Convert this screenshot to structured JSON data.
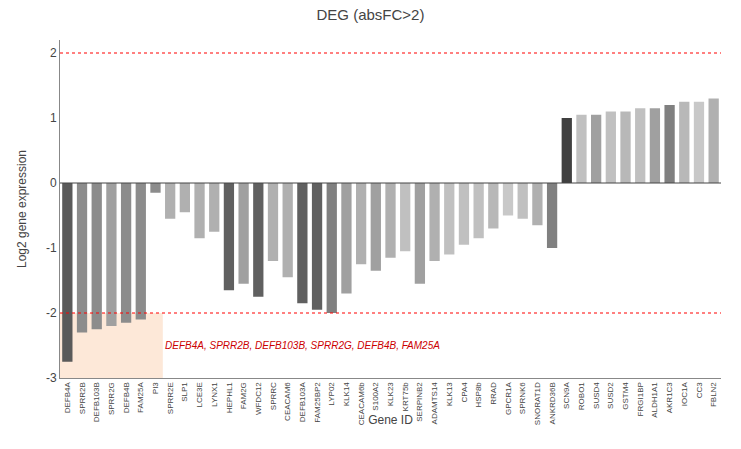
{
  "chart_data": {
    "type": "bar",
    "title": "DEG (absFC>2)",
    "xlabel": "Gene ID",
    "ylabel": "Log2 gene expression",
    "categories": [
      "DEFB4A",
      "SPRR2B",
      "DEFB103B",
      "SPRR2G",
      "DEFB4B",
      "FAM25A",
      "PI3",
      "SPRR2E",
      "SLP1",
      "LCE3E",
      "LYNX1",
      "HEPHL1",
      "FAM2G",
      "WFDC12",
      "SPRRC",
      "CEACAM6",
      "DEFB103A",
      "FAM25BP2",
      "LYP02",
      "KLK14",
      "CEACAM6b",
      "S100A2",
      "KLK23",
      "KRT75b",
      "SERPINB2",
      "ADAMTS14",
      "KLK13",
      "CPA4",
      "HSP8b",
      "RRAD",
      "GPCR1A",
      "SPRNK6",
      "SNORAT1D",
      "ANKRD36B",
      "SCN9A",
      "ROBO1",
      "SUSD4",
      "SUSD2",
      "GSTM4",
      "FRGI1BP",
      "ALDH1A1",
      "AKR1C3",
      "IOC1A",
      "CC3",
      "FBLN2"
    ],
    "values": [
      -2.75,
      -2.3,
      -2.25,
      -2.2,
      -2.15,
      -2.1,
      -0.15,
      -0.55,
      -0.45,
      -0.85,
      -0.75,
      -1.65,
      -1.55,
      -1.75,
      -1.2,
      -1.45,
      -1.85,
      -1.95,
      -2.0,
      -1.7,
      -1.25,
      -1.35,
      -1.15,
      -1.05,
      -1.55,
      -1.2,
      -1.1,
      -0.95,
      -0.85,
      -0.7,
      -0.5,
      -0.55,
      -0.65,
      -1.0,
      1.0,
      1.05,
      1.05,
      1.1,
      1.1,
      1.15,
      1.15,
      1.2,
      1.25,
      1.25,
      1.3
    ],
    "colors": [
      "#5a5a5a",
      "#8c8c8c",
      "#8c8c8c",
      "#a0a0a0",
      "#8c8c8c",
      "#8c8c8c",
      "#8c8c8c",
      "#b0b0b0",
      "#b0b0b0",
      "#b0b0b0",
      "#b0b0b0",
      "#606060",
      "#a0a0a0",
      "#606060",
      "#b0b0b0",
      "#b0b0b0",
      "#606060",
      "#606060",
      "#808080",
      "#a0a0a0",
      "#b0b0b0",
      "#a0a0a0",
      "#b0b0b0",
      "#c0c0c0",
      "#a0a0a0",
      "#b0b0b0",
      "#c0c0c0",
      "#c0c0c0",
      "#c0c0c0",
      "#b8b8b8",
      "#c8c8c8",
      "#c0c0c0",
      "#b0b0b0",
      "#808080",
      "#404040",
      "#c0c0c0",
      "#a0a0a0",
      "#c0c0c0",
      "#b8b8b8",
      "#c0c0c0",
      "#a0a0a0",
      "#808080",
      "#b8b8b8",
      "#c8c8c8",
      "#b0b0b0"
    ],
    "ylim": [
      -3,
      2.2
    ],
    "yticks": [
      -3,
      -2,
      -1,
      0,
      1,
      2
    ],
    "grid": false,
    "hline": 0,
    "dashed_lines": [
      -2,
      2
    ],
    "dashed_line_color": "red",
    "highlight": {
      "x0": 0,
      "x1": 6,
      "y0": -3,
      "y1": -2,
      "color": "#fde8d8"
    },
    "annotation": {
      "text": "DEFB4A, SPRR2B, DEFB103B, SPRR2G, DEFB4B, FAM25A",
      "color": "#cc0000"
    }
  }
}
